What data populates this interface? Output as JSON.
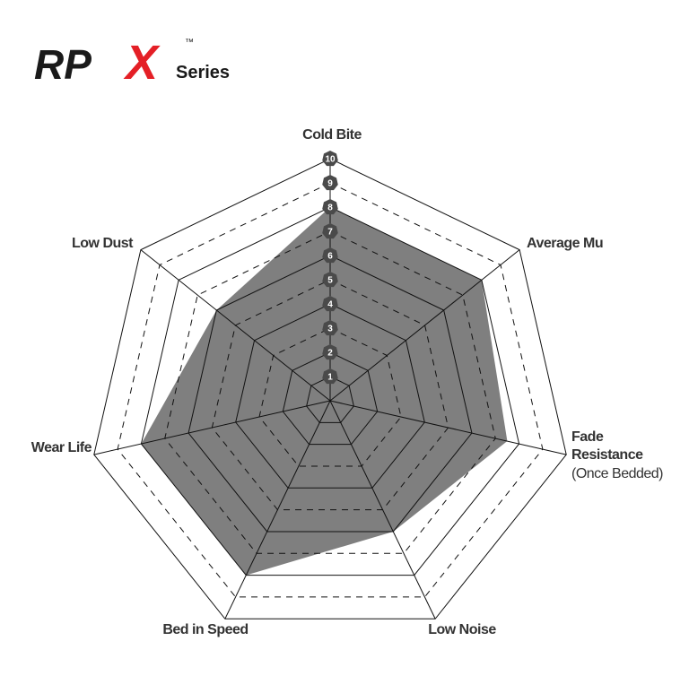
{
  "logo": {
    "brand": "RP",
    "mark": "X",
    "trademark": "™",
    "line": "Series"
  },
  "chart_data": {
    "type": "radar",
    "categories": [
      "Cold Bite",
      "Average Mu",
      "Fade Resistance",
      "Low Noise",
      "Bed in Speed",
      "Wear Life",
      "Low Dust"
    ],
    "annotations": [
      {
        "text": "(Once Bedded)"
      }
    ],
    "values": [
      8,
      8,
      7.5,
      6,
      8,
      8,
      6
    ],
    "color": "#7f7f7f",
    "rlim": [
      0,
      10
    ],
    "rticks": [
      1,
      2,
      3,
      4,
      5,
      6,
      7,
      8,
      9,
      10
    ],
    "grid": true
  }
}
